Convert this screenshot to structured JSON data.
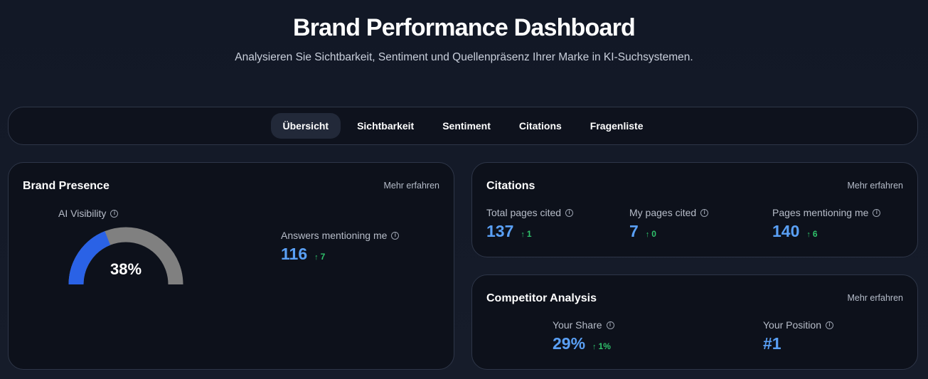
{
  "header": {
    "title": "Brand Performance Dashboard",
    "subtitle": "Analysieren Sie Sichtbarkeit, Sentiment und Quellenpräsenz Ihrer Marke in KI-Suchsystemen."
  },
  "tabs": [
    {
      "label": "Übersicht",
      "active": true
    },
    {
      "label": "Sichtbarkeit",
      "active": false
    },
    {
      "label": "Sentiment",
      "active": false
    },
    {
      "label": "Citations",
      "active": false
    },
    {
      "label": "Fragenliste",
      "active": false
    }
  ],
  "brand_presence": {
    "title": "Brand Presence",
    "link": "Mehr erfahren",
    "ai_visibility": {
      "label": "AI Visibility",
      "value_text": "38%",
      "fraction": 0.38,
      "fill_color": "#2a62e6",
      "track_color": "#808080"
    },
    "answers": {
      "label": "Answers mentioning me",
      "value": "116",
      "delta": "7"
    }
  },
  "citations": {
    "title": "Citations",
    "link": "Mehr erfahren",
    "metrics": [
      {
        "label": "Total pages cited",
        "value": "137",
        "delta": "1"
      },
      {
        "label": "My pages cited",
        "value": "7",
        "delta": "0"
      },
      {
        "label": "Pages mentioning me",
        "value": "140",
        "delta": "6"
      }
    ]
  },
  "competitor": {
    "title": "Competitor Analysis",
    "link": "Mehr erfahren",
    "share": {
      "label": "Your Share",
      "value": "29%",
      "delta": "1%"
    },
    "position": {
      "label": "Your Position",
      "value": "#1"
    }
  },
  "icons": {
    "info": "info-icon",
    "delta": "arrow-up-icon"
  },
  "colors": {
    "value_blue": "#5aa0f5",
    "delta_green": "#2fc26b",
    "background": "#141a27"
  }
}
